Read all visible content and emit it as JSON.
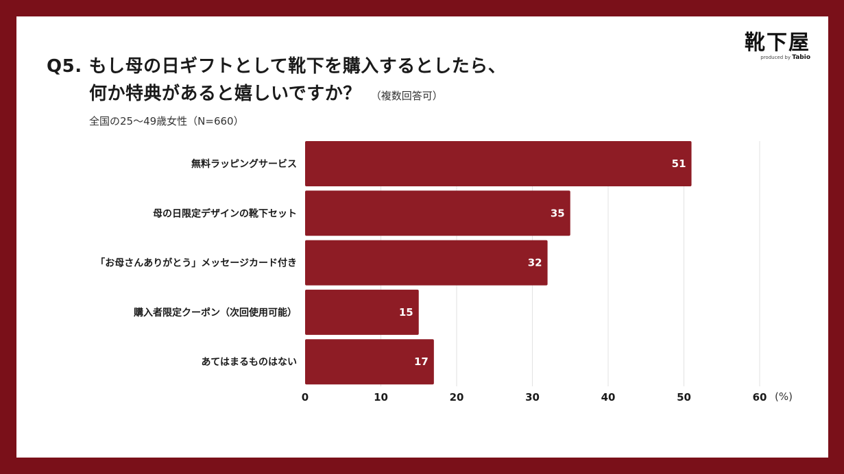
{
  "header": {
    "question_no": "Q5.",
    "question_line1": "もし母の日ギフトとして靴下を購入するとしたら、",
    "question_line2": "何か特典があると嬉しいですか？",
    "question_note": "（複数回答可）",
    "subtitle": "全国の25〜49歳女性（N=660）"
  },
  "logo": {
    "name": "靴下屋",
    "sub": "produced by",
    "brand": "Tabio"
  },
  "colors": {
    "frame": "#7a1019",
    "bar": "#8e1c25",
    "background": "#ffffff",
    "grid": "#e2e2e2"
  },
  "chart_data": {
    "type": "bar",
    "orientation": "horizontal",
    "categories": [
      "無料ラッピングサービス",
      "母の日限定デザインの靴下セット",
      "「お母さんありがとう」メッセージカード付き",
      "購入者限定クーポン（次回使用可能）",
      "あてはまるものはない"
    ],
    "values": [
      51,
      35,
      32,
      15,
      17
    ],
    "value_labels": [
      "51",
      "35",
      "32",
      "15",
      "17"
    ],
    "xlim": [
      0,
      60
    ],
    "xticks": [
      "0",
      "10",
      "20",
      "30",
      "40",
      "50",
      "60"
    ],
    "unit": "(%)",
    "grid": true
  }
}
